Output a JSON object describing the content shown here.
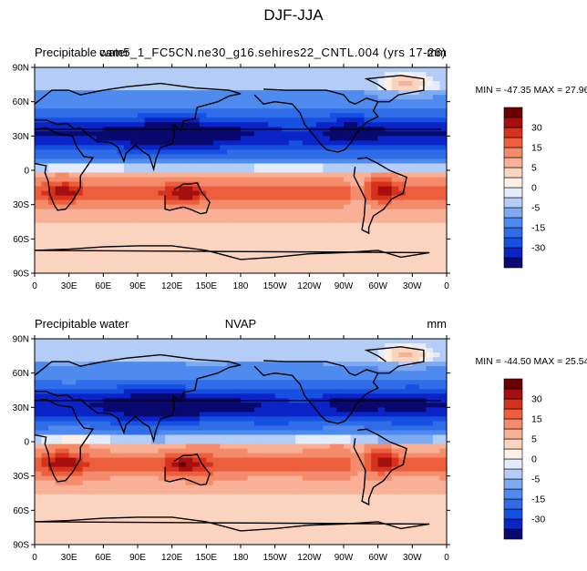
{
  "figure_title": "DJF-JJA",
  "colors": {
    "palette": [
      "#08086e",
      "#0a24c8",
      "#1650e0",
      "#2f6ce8",
      "#4f8bee",
      "#7eaaf1",
      "#b4cdf6",
      "#e2ecfc",
      "#fdf0e6",
      "#fbd4c0",
      "#f8b196",
      "#f48c6c",
      "#ec5e3c",
      "#d4321c",
      "#a50f0f",
      "#6b0000"
    ],
    "land": "#000000",
    "frame": "#000000"
  },
  "chart_data": [
    {
      "type": "heatmap",
      "map": "global-cylindrical-equidistant",
      "title_left": "Precipitable water",
      "title_center": "cam5_1_FC5CN.ne30_g16.sehires22_CNTL.004 (yrs 17-26)",
      "units": "mm",
      "stats": "MIN = -47.35 MAX =  27.96",
      "min": -47.35,
      "max": 27.96,
      "lat_ticks": [
        "90N",
        "60N",
        "30N",
        "0",
        "30S",
        "60S",
        "90S"
      ],
      "lon_ticks": [
        "0",
        "30E",
        "60E",
        "90E",
        "120E",
        "150E",
        "180",
        "150W",
        "120W",
        "90W",
        "60W",
        "30W",
        "0"
      ],
      "colorbar_levels": [
        -35,
        -30,
        -25,
        -20,
        -15,
        -10,
        -5,
        -2,
        0,
        2,
        5,
        10,
        15,
        20,
        25,
        30,
        35
      ],
      "colorbar_labels": [
        "30",
        "15",
        "5",
        "0",
        "-5",
        "-15",
        "-30"
      ]
    },
    {
      "type": "heatmap",
      "map": "global-cylindrical-equidistant",
      "title_left": "Precipitable water",
      "title_center": "NVAP",
      "units": "mm",
      "stats": "MIN = -44.50 MAX =  25.54",
      "min": -44.5,
      "max": 25.54,
      "lat_ticks": [
        "90N",
        "60N",
        "30N",
        "0",
        "30S",
        "60S",
        "90S"
      ],
      "lon_ticks": [
        "0",
        "30E",
        "60E",
        "90E",
        "120E",
        "150E",
        "180",
        "150W",
        "120W",
        "90W",
        "60W",
        "30W",
        "0"
      ],
      "colorbar_levels": [
        -35,
        -30,
        -25,
        -20,
        -15,
        -10,
        -5,
        -2,
        0,
        2,
        5,
        10,
        15,
        20,
        25,
        30,
        35
      ],
      "colorbar_labels": [
        "30",
        "15",
        "5",
        "0",
        "-5",
        "-15",
        "-30"
      ]
    }
  ]
}
